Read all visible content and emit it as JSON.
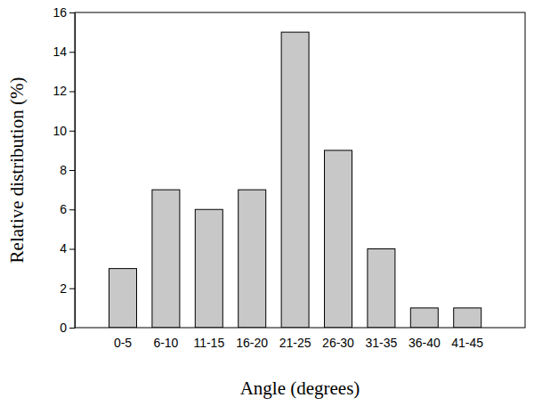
{
  "chart_data": {
    "type": "bar",
    "x_label": "Angle (degrees)",
    "y_label": "Relative distribution (%)",
    "categories": [
      "0-5",
      "6-10",
      "11-15",
      "16-20",
      "21-25",
      "26-30",
      "31-35",
      "36-40",
      "41-45"
    ],
    "values": [
      3,
      7,
      6,
      7,
      15,
      9,
      4,
      1,
      1
    ],
    "color": "#c8c8c8",
    "ylim": [
      0,
      16
    ],
    "yticks": [
      0,
      2,
      4,
      6,
      8,
      10,
      12,
      14,
      16
    ],
    "grid": false
  }
}
